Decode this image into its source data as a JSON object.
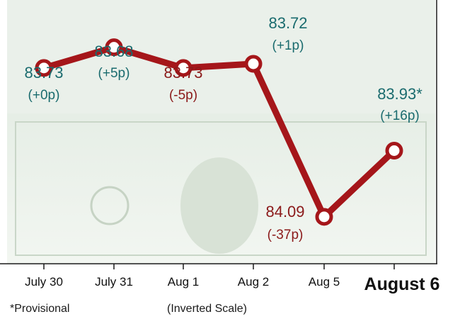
{
  "chart_data": {
    "type": "line",
    "categories": [
      "July 30",
      "July 31",
      "Aug 1",
      "Aug 2",
      "Aug 5",
      "August 6"
    ],
    "values": [
      83.73,
      83.68,
      83.73,
      83.72,
      84.09,
      83.93
    ],
    "value_labels": [
      "83.73",
      "83.68",
      "83.73",
      "83.72",
      "84.09",
      "83.93*"
    ],
    "change_labels": [
      "(+0p)",
      "(+5p)",
      "(-5p)",
      "(+1p)",
      "(-37p)",
      "(+16p)"
    ],
    "y_inverted": true,
    "ylim": [
      83.6,
      84.2
    ],
    "colors": {
      "line": "#a5161a",
      "marker_fill": "#ffffff",
      "gain_text": "#1a6b6e",
      "loss_text": "#8b1a1a",
      "axis": "#1a1a1a"
    },
    "label_colors": [
      "gain",
      "gain",
      "loss",
      "gain",
      "loss",
      "gain"
    ]
  },
  "footnotes": {
    "provisional": "*Provisional",
    "scale": "(Inverted Scale)"
  }
}
